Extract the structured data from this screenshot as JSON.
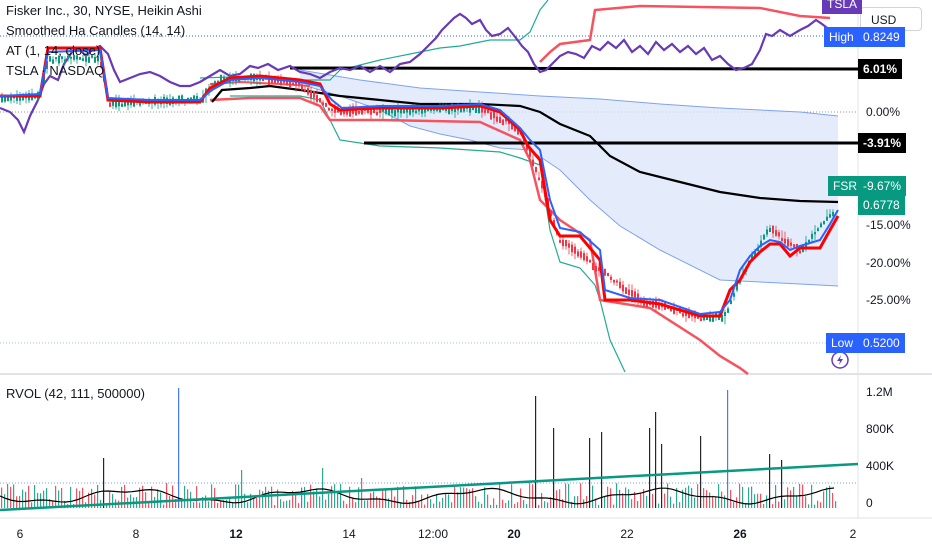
{
  "legend": {
    "main": "Fisker Inc., 30, NYSE, Heikin Ashi",
    "ind1": "Smoothed Ha Candles (14, 14)",
    "ind2": "AT (1, 14, close)",
    "ind3": "TSLA · NASDAQ",
    "rvol": "RVOL (42, 111, 500000)"
  },
  "currency_button": "USD",
  "price_axis": {
    "labels": [
      {
        "text": "0.00%",
        "value": 0
      },
      {
        "text": "-15.00%",
        "value": -15
      },
      {
        "text": "-20.00%",
        "value": -20
      },
      {
        "text": "-25.00%",
        "value": -25
      }
    ],
    "tags": {
      "tsla": "TSLA",
      "high_label": "High",
      "high_value": "0.8249",
      "line_upper": "6.01%",
      "line_lower": "-3.91%",
      "fsr_label": "FSR",
      "fsr_pct": "-9.67%",
      "fsr_price": "0.6778",
      "low_label": "Low",
      "low_value": "0.5200"
    }
  },
  "volume_axis": {
    "labels": [
      "1.2M",
      "800K",
      "400K",
      "0"
    ]
  },
  "time_axis": {
    "labels": [
      {
        "text": "6",
        "bold": false
      },
      {
        "text": "8",
        "bold": false
      },
      {
        "text": "12",
        "bold": true
      },
      {
        "text": "14",
        "bold": false
      },
      {
        "text": "12:00",
        "bold": false
      },
      {
        "text": "20",
        "bold": true
      },
      {
        "text": "22",
        "bold": false
      },
      {
        "text": "26",
        "bold": true
      },
      {
        "text": "2",
        "bold": false
      }
    ]
  },
  "colors": {
    "up": "#089981",
    "down": "#f23645",
    "tsla": "#673ab7",
    "smooth_red": "#ff0000",
    "smooth_blue": "#2962ff",
    "envelope_red": "#f7525f",
    "envelope_teal": "#22ab94",
    "black_line": "#000000",
    "cloud_fill": "#dbe6fb",
    "cloud_line": "#7fa2f0",
    "fsr_tag": "#089981",
    "high_tag": "#2962ff",
    "tsla_tag": "#673ab7",
    "volume_up": "#089981",
    "volume_down": "#f23645",
    "volume_spike_blue": "#2962ff",
    "volume_trend": "#089981"
  }
}
